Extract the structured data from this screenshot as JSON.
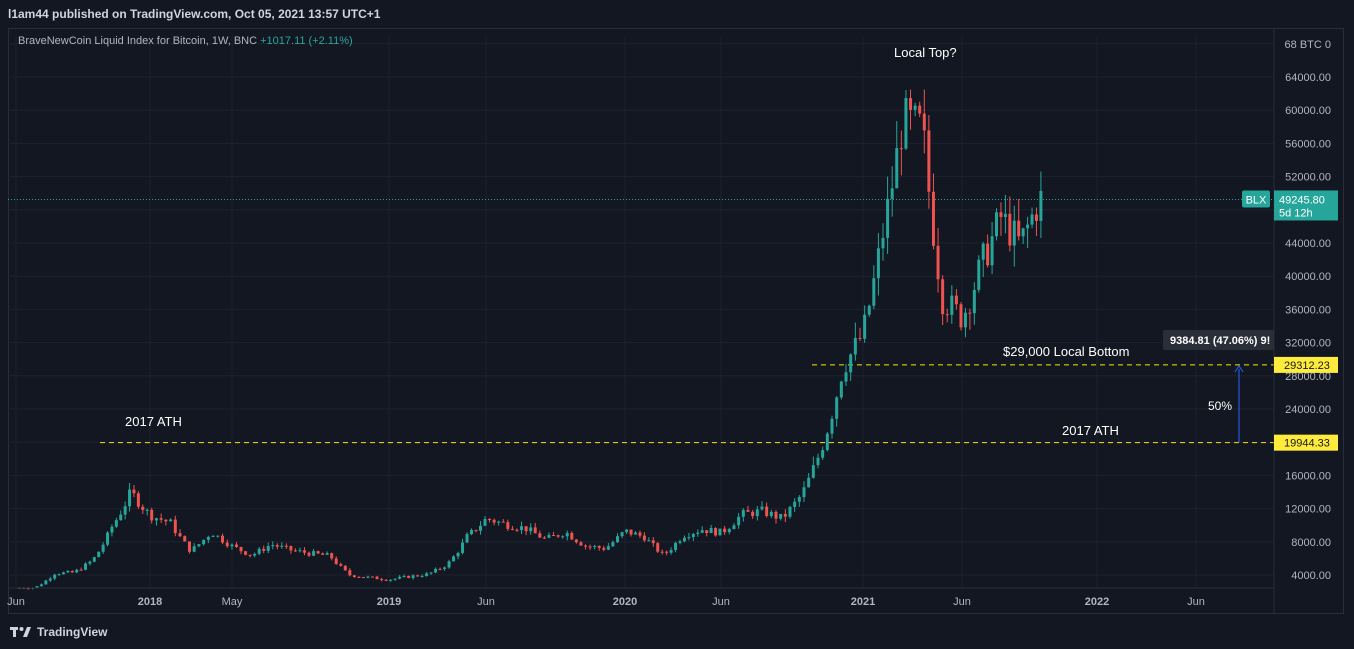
{
  "header": {
    "published": "l1am44 published on TradingView.com, Oct 05, 2021 13:57 UTC+1"
  },
  "legend": {
    "symbol": "BraveNewCoin Liquid Index for Bitcoin, 1W, BNC",
    "change": "+1017.11 (+2.11%)"
  },
  "footer": {
    "brand": "TradingView"
  },
  "colors": {
    "up": "#26a69a",
    "down": "#ef5350",
    "background": "#131722",
    "grid": "#1e2230",
    "dashed": "#f2e500",
    "label_bg": "#ffeb3b",
    "arrow": "#2962ff"
  },
  "chart_data": {
    "type": "candlestick",
    "y_unit": "BTC",
    "y_ticks": [
      "4000.00",
      "8000.00",
      "12000.00",
      "16000.00",
      "20000.00",
      "24000.00",
      "28000.00",
      "32000.00",
      "36000.00",
      "40000.00",
      "44000.00",
      "48000.00",
      "52000.00",
      "56000.00",
      "60000.00",
      "64000.00",
      "68 BTC 0"
    ],
    "x_ticks": [
      "Jun",
      "2018",
      "May",
      "2019",
      "Jun",
      "2020",
      "Jun",
      "2021",
      "Jun",
      "2022",
      "Jun"
    ],
    "last_price": {
      "symbol": "BLX",
      "value": "49245.80",
      "countdown": "5d 12h"
    },
    "levels": [
      {
        "value": 29312.23,
        "label": "29312.23",
        "note": "$29,000 Local Bottom"
      },
      {
        "value": 19944.33,
        "label": "19944.33",
        "note": "2017 ATH"
      }
    ],
    "annotations": {
      "ath_left": "2017 ATH",
      "local_top": "Local Top?",
      "measure": "9384.81 (47.06%) 9!",
      "percent": "50%"
    },
    "candles_close_by_date": [
      [
        "2017-06",
        2450
      ],
      [
        "2017-07",
        2500
      ],
      [
        "2017-08",
        4200
      ],
      [
        "2017-09",
        4300
      ],
      [
        "2017-10",
        5800
      ],
      [
        "2017-11",
        9800
      ],
      [
        "2017-12",
        14000
      ],
      [
        "2018-01",
        11200
      ],
      [
        "2018-02",
        10300
      ],
      [
        "2018-03",
        6900
      ],
      [
        "2018-04",
        9200
      ],
      [
        "2018-05",
        7500
      ],
      [
        "2018-06",
        6400
      ],
      [
        "2018-07",
        7700
      ],
      [
        "2018-08",
        7000
      ],
      [
        "2018-09",
        6600
      ],
      [
        "2018-10",
        6300
      ],
      [
        "2018-11",
        4000
      ],
      [
        "2018-12",
        3700
      ],
      [
        "2019-01",
        3450
      ],
      [
        "2019-02",
        3800
      ],
      [
        "2019-03",
        4100
      ],
      [
        "2019-04",
        5300
      ],
      [
        "2019-05",
        8600
      ],
      [
        "2019-06",
        10800
      ],
      [
        "2019-07",
        10100
      ],
      [
        "2019-08",
        9600
      ],
      [
        "2019-09",
        8300
      ],
      [
        "2019-10",
        9200
      ],
      [
        "2019-11",
        7500
      ],
      [
        "2019-12",
        7200
      ],
      [
        "2020-01",
        9300
      ],
      [
        "2020-02",
        8600
      ],
      [
        "2020-03",
        6400
      ],
      [
        "2020-04",
        8800
      ],
      [
        "2020-05",
        9500
      ],
      [
        "2020-06",
        9100
      ],
      [
        "2020-07",
        11300
      ],
      [
        "2020-08",
        11700
      ],
      [
        "2020-09",
        10800
      ],
      [
        "2020-10",
        13800
      ],
      [
        "2020-11",
        19700
      ],
      [
        "2020-12",
        29000
      ],
      [
        "2021-01",
        33100
      ],
      [
        "2021-02",
        45200
      ],
      [
        "2021-03",
        58800
      ],
      [
        "2021-04",
        57700
      ],
      [
        "2021-05",
        37300
      ],
      [
        "2021-06",
        35000
      ],
      [
        "2021-07",
        41500
      ],
      [
        "2021-08",
        47100
      ],
      [
        "2021-09",
        43800
      ],
      [
        "2021-10",
        49245
      ]
    ]
  }
}
